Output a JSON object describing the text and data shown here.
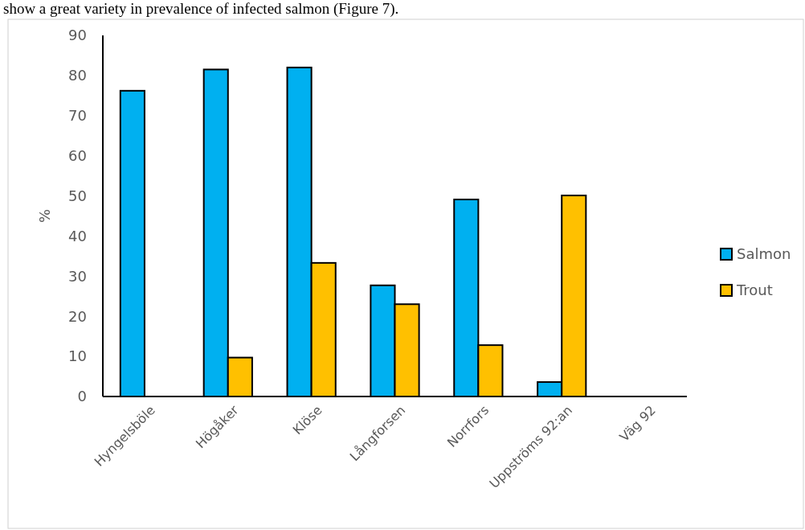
{
  "chart_data": {
    "type": "bar",
    "ylabel": "%",
    "annotations": [
      "show a great variety in prevalence of infected salmon (Figure 7)."
    ],
    "categories": [
      "Hyngelsböle",
      "Högåker",
      "Klöse",
      "Långforsen",
      "Norrfors",
      "Uppströms 92:an",
      "Väg 92"
    ],
    "series": [
      {
        "name": "Salmon",
        "color": "#00b0f0",
        "values": [
          76.2,
          81.5,
          82.0,
          27.7,
          49.1,
          3.6,
          0
        ]
      },
      {
        "name": "Trout",
        "color": "#ffc000",
        "values": [
          0,
          9.7,
          33.3,
          23.0,
          12.8,
          50.1,
          0
        ]
      }
    ],
    "ylim": [
      0,
      90
    ],
    "yticks": [
      0,
      10,
      20,
      30,
      40,
      50,
      60,
      70,
      80,
      90
    ],
    "grid": false,
    "legend": "right"
  }
}
